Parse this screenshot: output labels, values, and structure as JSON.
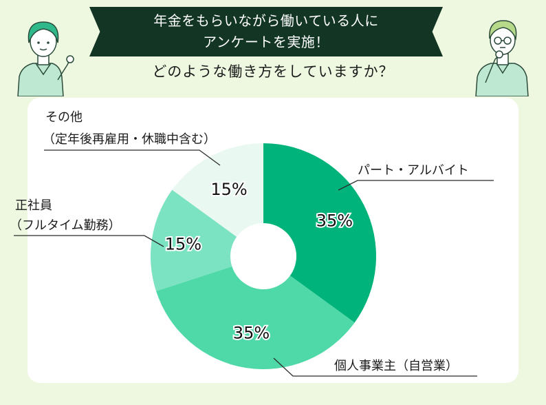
{
  "header": {
    "title_line1": "年金をもらいながら働いている人に",
    "title_line2": "アンケートを実施！",
    "subtitle": "どのような働き方をしていますか？"
  },
  "colors": {
    "background": "#eef8e1",
    "banner": "#123524",
    "slice_part": "#00b37a",
    "slice_self": "#4fd9a8",
    "slice_fulltime": "#7be3c1",
    "slice_other": "#e9f8f1",
    "label_line": "#2b2b2b"
  },
  "chart_data": {
    "type": "pie",
    "donut": true,
    "slices": [
      {
        "label": "パート・アルバイト",
        "value": 35,
        "display": "35%"
      },
      {
        "label": "個人事業主（自営業）",
        "value": 35,
        "display": "35%"
      },
      {
        "label": "正社員",
        "label_line2": "（フルタイム勤務）",
        "value": 15,
        "display": "15%"
      },
      {
        "label": "その他",
        "label_line2": "（定年後再雇用・休職中含む）",
        "value": 15,
        "display": "15%"
      }
    ],
    "legend": "callout labels"
  }
}
